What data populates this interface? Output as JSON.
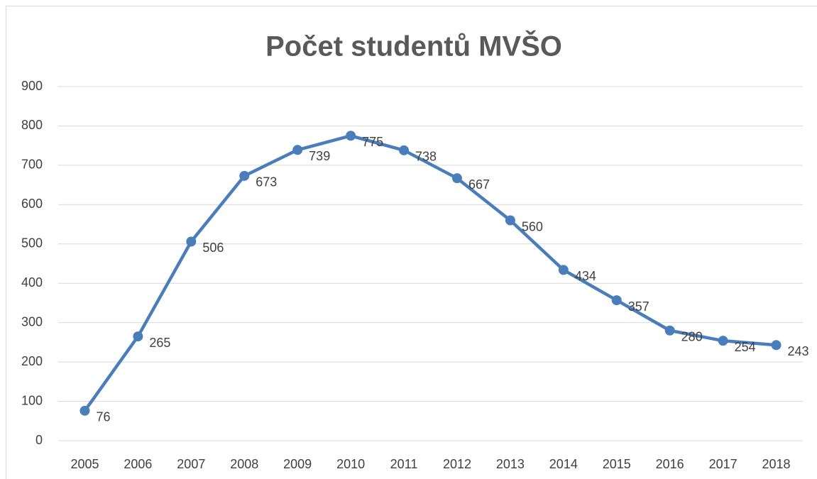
{
  "chart_data": {
    "type": "line",
    "title": "Počet studentů MVŠO",
    "categories": [
      "2005",
      "2006",
      "2007",
      "2008",
      "2009",
      "2010",
      "2011",
      "2012",
      "2013",
      "2014",
      "2015",
      "2016",
      "2017",
      "2018"
    ],
    "series": [
      {
        "name": "Počet studentů",
        "color": "#4a7ebb",
        "values": [
          76,
          265,
          506,
          673,
          739,
          775,
          738,
          667,
          560,
          434,
          357,
          280,
          254,
          243
        ]
      }
    ],
    "ylim": [
      0,
      900
    ],
    "yticks": [
      0,
      100,
      200,
      300,
      400,
      500,
      600,
      700,
      800,
      900
    ],
    "grid": true,
    "data_labels": true
  }
}
